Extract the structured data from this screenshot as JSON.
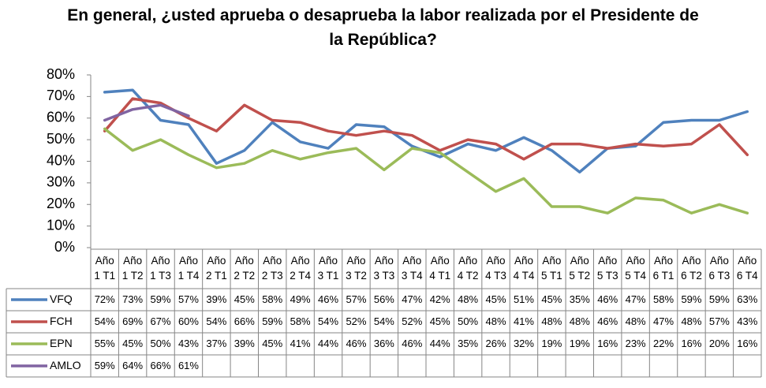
{
  "chart_data": {
    "type": "line",
    "title": "En general, ¿usted aprueba o desaprueba la labor realizada por el Presidente de la República?",
    "categories": [
      "Año 1 T1",
      "Año 1 T2",
      "Año 1 T3",
      "Año 1 T4",
      "Año 2 T1",
      "Año 2 T2",
      "Año 2 T3",
      "Año 2 T4",
      "Año 3 T1",
      "Año 3 T2",
      "Año 3 T3",
      "Año 3 T4",
      "Año 4 T1",
      "Año 4 T2",
      "Año 4 T3",
      "Año 4 T4",
      "Año 5 T1",
      "Año 5 T2",
      "Año 5 T3",
      "Año 5 T4",
      "Año 6 T1",
      "Año 6 T2",
      "Año 6 T3",
      "Año 6 T4"
    ],
    "series": [
      {
        "name": "VFQ",
        "color": "#4f81bd",
        "values": [
          72,
          73,
          59,
          57,
          39,
          45,
          58,
          49,
          46,
          57,
          56,
          47,
          42,
          48,
          45,
          51,
          45,
          35,
          46,
          47,
          58,
          59,
          59,
          63
        ],
        "value_labels": [
          "72%",
          "73%",
          "59%",
          "57%",
          "39%",
          "45%",
          "58%",
          "49%",
          "46%",
          "57%",
          "56%",
          "47%",
          "42%",
          "48%",
          "45%",
          "51%",
          "45%",
          "35%",
          "46%",
          "47%",
          "58%",
          "59%",
          "59%",
          "63%"
        ]
      },
      {
        "name": "FCH",
        "color": "#c0504d",
        "values": [
          54,
          69,
          67,
          60,
          54,
          66,
          59,
          58,
          54,
          52,
          54,
          52,
          45,
          50,
          48,
          41,
          48,
          48,
          46,
          48,
          47,
          48,
          57,
          43
        ],
        "value_labels": [
          "54%",
          "69%",
          "67%",
          "60%",
          "54%",
          "66%",
          "59%",
          "58%",
          "54%",
          "52%",
          "54%",
          "52%",
          "45%",
          "50%",
          "48%",
          "41%",
          "48%",
          "48%",
          "46%",
          "48%",
          "47%",
          "48%",
          "57%",
          "43%"
        ]
      },
      {
        "name": "EPN",
        "color": "#9bbb59",
        "values": [
          55,
          45,
          50,
          43,
          37,
          39,
          45,
          41,
          44,
          46,
          36,
          46,
          44,
          35,
          26,
          32,
          19,
          19,
          16,
          23,
          22,
          16,
          20,
          16
        ],
        "value_labels": [
          "55%",
          "45%",
          "50%",
          "43%",
          "37%",
          "39%",
          "45%",
          "41%",
          "44%",
          "46%",
          "36%",
          "46%",
          "44%",
          "35%",
          "26%",
          "32%",
          "19%",
          "19%",
          "16%",
          "23%",
          "22%",
          "16%",
          "20%",
          "16%"
        ]
      },
      {
        "name": "AMLO",
        "color": "#8064a2",
        "values": [
          59,
          64,
          66,
          61,
          null,
          null,
          null,
          null,
          null,
          null,
          null,
          null,
          null,
          null,
          null,
          null,
          null,
          null,
          null,
          null,
          null,
          null,
          null,
          null
        ],
        "value_labels": [
          "59%",
          "64%",
          "66%",
          "61%",
          null,
          null,
          null,
          null,
          null,
          null,
          null,
          null,
          null,
          null,
          null,
          null,
          null,
          null,
          null,
          null,
          null,
          null,
          null,
          null
        ]
      }
    ],
    "ylim": [
      0,
      80
    ],
    "yticks": [
      {
        "value": 0,
        "label": "0%"
      },
      {
        "value": 10,
        "label": "10%"
      },
      {
        "value": 20,
        "label": "20%"
      },
      {
        "value": 30,
        "label": "30%"
      },
      {
        "value": 40,
        "label": "40%"
      },
      {
        "value": 50,
        "label": "50%"
      },
      {
        "value": 60,
        "label": "60%"
      },
      {
        "value": 70,
        "label": "70%"
      },
      {
        "value": 80,
        "label": "80%"
      }
    ],
    "grid": false
  }
}
